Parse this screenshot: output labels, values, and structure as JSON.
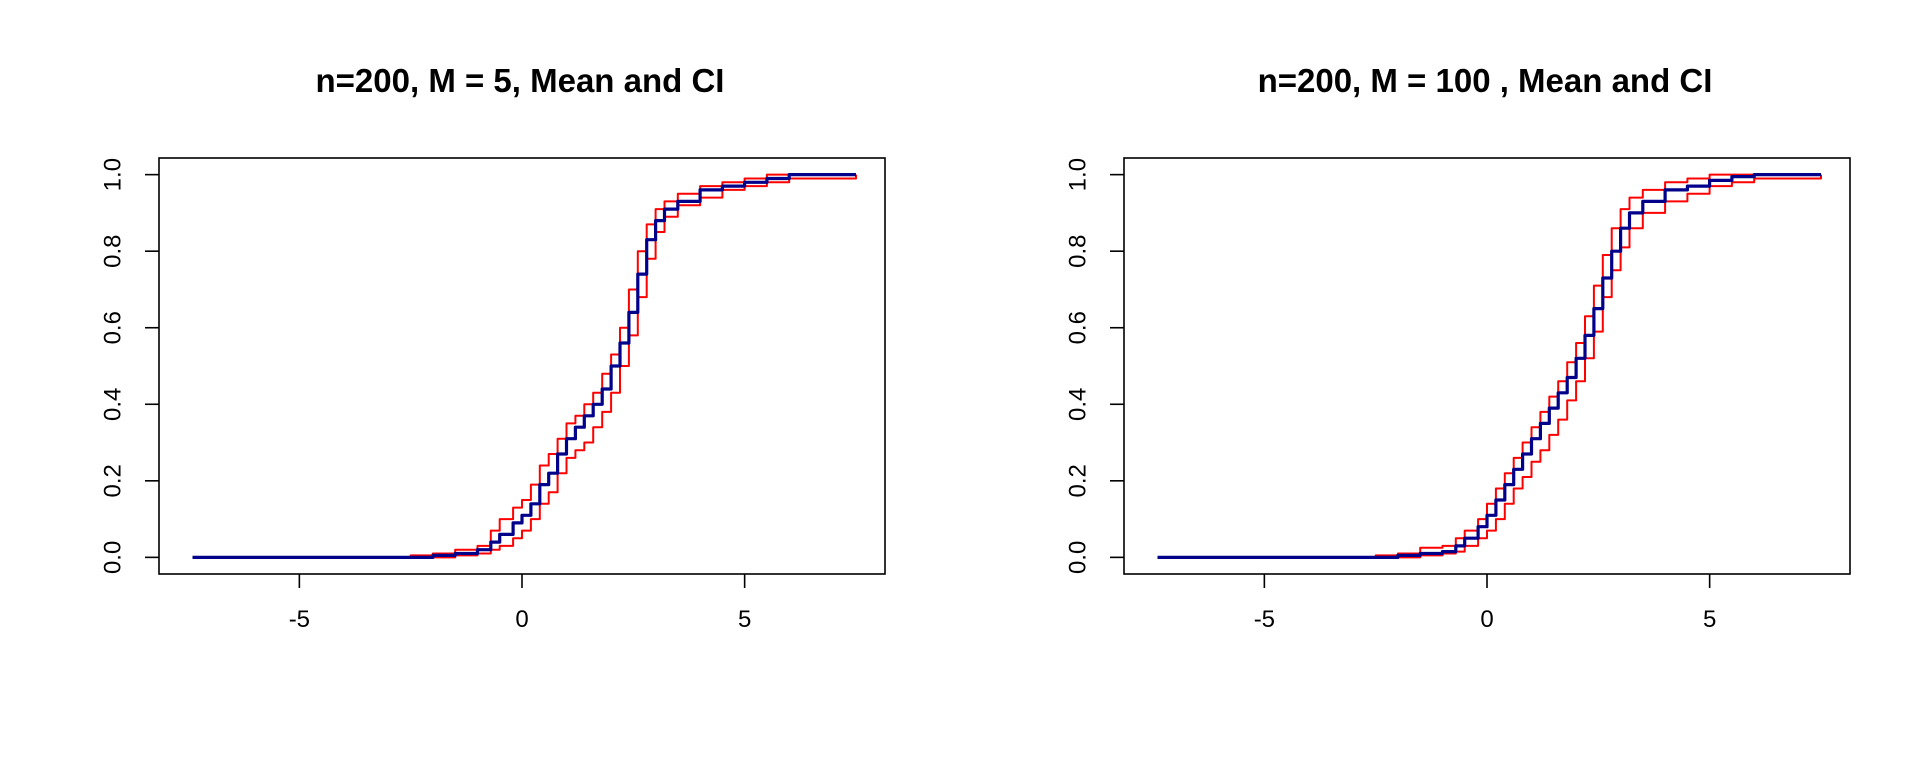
{
  "figure": {
    "background": "#ffffff",
    "colors": {
      "mean": "#00008B",
      "ci": "#FF0000",
      "axis": "#000000"
    }
  },
  "chart_data": [
    {
      "type": "line",
      "title": "n=200, M = 5, Mean and CI",
      "xlabel": "",
      "ylabel": "",
      "xlim": [
        -7.5,
        7.5
      ],
      "ylim": [
        0,
        1
      ],
      "xticks": [
        -5,
        0,
        5
      ],
      "xtick_labels": [
        "-5",
        "0",
        "5"
      ],
      "yticks": [
        0,
        0.2,
        0.4,
        0.6,
        0.8,
        1
      ],
      "ytick_labels": [
        "0.0",
        "0.2",
        "0.4",
        "0.6",
        "0.8",
        "1.0"
      ],
      "grid": false,
      "series": [
        {
          "role": "mean",
          "color": "#00008B",
          "x": [
            -7.4,
            -2.5,
            -2.0,
            -1.5,
            -1.0,
            -0.7,
            -0.5,
            -0.2,
            0.0,
            0.2,
            0.4,
            0.6,
            0.8,
            1.0,
            1.2,
            1.4,
            1.6,
            1.8,
            2.0,
            2.2,
            2.4,
            2.6,
            2.8,
            3.0,
            3.2,
            3.5,
            4.0,
            4.5,
            5.0,
            5.5,
            6.0,
            7.5
          ],
          "y": [
            0.0,
            0.0,
            0.005,
            0.01,
            0.02,
            0.04,
            0.06,
            0.09,
            0.11,
            0.14,
            0.19,
            0.22,
            0.27,
            0.31,
            0.34,
            0.37,
            0.4,
            0.44,
            0.5,
            0.56,
            0.64,
            0.74,
            0.83,
            0.88,
            0.91,
            0.93,
            0.96,
            0.97,
            0.98,
            0.99,
            1.0,
            1.0
          ]
        },
        {
          "role": "upper",
          "color": "#FF0000",
          "x": [
            -7.4,
            -2.5,
            -2.0,
            -1.5,
            -1.0,
            -0.7,
            -0.5,
            -0.2,
            0.0,
            0.2,
            0.4,
            0.6,
            0.8,
            1.0,
            1.2,
            1.4,
            1.6,
            1.8,
            2.0,
            2.2,
            2.4,
            2.6,
            2.8,
            3.0,
            3.2,
            3.5,
            4.0,
            4.5,
            5.0,
            5.5,
            6.0,
            7.5
          ],
          "y": [
            0.0,
            0.005,
            0.01,
            0.02,
            0.03,
            0.07,
            0.1,
            0.13,
            0.15,
            0.19,
            0.24,
            0.27,
            0.31,
            0.35,
            0.37,
            0.4,
            0.43,
            0.48,
            0.53,
            0.6,
            0.7,
            0.8,
            0.87,
            0.91,
            0.93,
            0.95,
            0.97,
            0.98,
            0.99,
            1.0,
            1.0,
            1.0
          ]
        },
        {
          "role": "lower",
          "color": "#FF0000",
          "x": [
            -7.4,
            -2.5,
            -2.0,
            -1.5,
            -1.0,
            -0.7,
            -0.5,
            -0.2,
            0.0,
            0.2,
            0.4,
            0.6,
            0.8,
            1.0,
            1.2,
            1.4,
            1.6,
            1.8,
            2.0,
            2.2,
            2.4,
            2.6,
            2.8,
            3.0,
            3.2,
            3.5,
            4.0,
            4.5,
            5.0,
            5.5,
            6.0,
            7.5
          ],
          "y": [
            0.0,
            0.0,
            0.0,
            0.005,
            0.01,
            0.02,
            0.03,
            0.05,
            0.07,
            0.1,
            0.14,
            0.17,
            0.22,
            0.26,
            0.28,
            0.3,
            0.34,
            0.38,
            0.43,
            0.5,
            0.58,
            0.68,
            0.78,
            0.85,
            0.89,
            0.92,
            0.94,
            0.96,
            0.97,
            0.98,
            0.99,
            1.0
          ]
        }
      ]
    },
    {
      "type": "line",
      "title": "n=200, M = 100 , Mean and CI",
      "xlabel": "",
      "ylabel": "",
      "xlim": [
        -7.5,
        7.5
      ],
      "ylim": [
        0,
        1
      ],
      "xticks": [
        -5,
        0,
        5
      ],
      "xtick_labels": [
        "-5",
        "0",
        "5"
      ],
      "yticks": [
        0,
        0.2,
        0.4,
        0.6,
        0.8,
        1
      ],
      "ytick_labels": [
        "0.0",
        "0.2",
        "0.4",
        "0.6",
        "0.8",
        "1.0"
      ],
      "grid": false,
      "series": [
        {
          "role": "mean",
          "color": "#00008B",
          "x": [
            -7.4,
            -2.5,
            -2.0,
            -1.5,
            -1.0,
            -0.7,
            -0.5,
            -0.2,
            0.0,
            0.2,
            0.4,
            0.6,
            0.8,
            1.0,
            1.2,
            1.4,
            1.6,
            1.8,
            2.0,
            2.2,
            2.4,
            2.6,
            2.8,
            3.0,
            3.2,
            3.5,
            4.0,
            4.5,
            5.0,
            5.5,
            6.0,
            7.5
          ],
          "y": [
            0.0,
            0.0,
            0.005,
            0.01,
            0.015,
            0.03,
            0.05,
            0.08,
            0.11,
            0.15,
            0.19,
            0.23,
            0.27,
            0.31,
            0.35,
            0.39,
            0.43,
            0.47,
            0.52,
            0.58,
            0.65,
            0.73,
            0.8,
            0.86,
            0.9,
            0.93,
            0.96,
            0.97,
            0.985,
            0.995,
            1.0,
            1.0
          ]
        },
        {
          "role": "upper",
          "color": "#FF0000",
          "x": [
            -7.4,
            -2.5,
            -2.0,
            -1.5,
            -1.0,
            -0.7,
            -0.5,
            -0.2,
            0.0,
            0.2,
            0.4,
            0.6,
            0.8,
            1.0,
            1.2,
            1.4,
            1.6,
            1.8,
            2.0,
            2.2,
            2.4,
            2.6,
            2.8,
            3.0,
            3.2,
            3.5,
            4.0,
            4.5,
            5.0,
            5.5,
            6.0,
            7.5
          ],
          "y": [
            0.0,
            0.005,
            0.01,
            0.025,
            0.03,
            0.05,
            0.07,
            0.1,
            0.14,
            0.18,
            0.22,
            0.26,
            0.3,
            0.34,
            0.38,
            0.42,
            0.46,
            0.51,
            0.56,
            0.63,
            0.71,
            0.79,
            0.86,
            0.91,
            0.94,
            0.96,
            0.98,
            0.99,
            1.0,
            1.0,
            1.0,
            1.0
          ]
        },
        {
          "role": "lower",
          "color": "#FF0000",
          "x": [
            -7.4,
            -2.5,
            -2.0,
            -1.5,
            -1.0,
            -0.7,
            -0.5,
            -0.2,
            0.0,
            0.2,
            0.4,
            0.6,
            0.8,
            1.0,
            1.2,
            1.4,
            1.6,
            1.8,
            2.0,
            2.2,
            2.4,
            2.6,
            2.8,
            3.0,
            3.2,
            3.5,
            4.0,
            4.5,
            5.0,
            5.5,
            6.0,
            7.5
          ],
          "y": [
            0.0,
            0.0,
            0.0,
            0.005,
            0.01,
            0.015,
            0.03,
            0.05,
            0.07,
            0.1,
            0.14,
            0.18,
            0.21,
            0.25,
            0.28,
            0.32,
            0.36,
            0.41,
            0.46,
            0.52,
            0.59,
            0.68,
            0.75,
            0.81,
            0.86,
            0.9,
            0.93,
            0.95,
            0.97,
            0.98,
            0.99,
            1.0
          ]
        }
      ]
    }
  ]
}
